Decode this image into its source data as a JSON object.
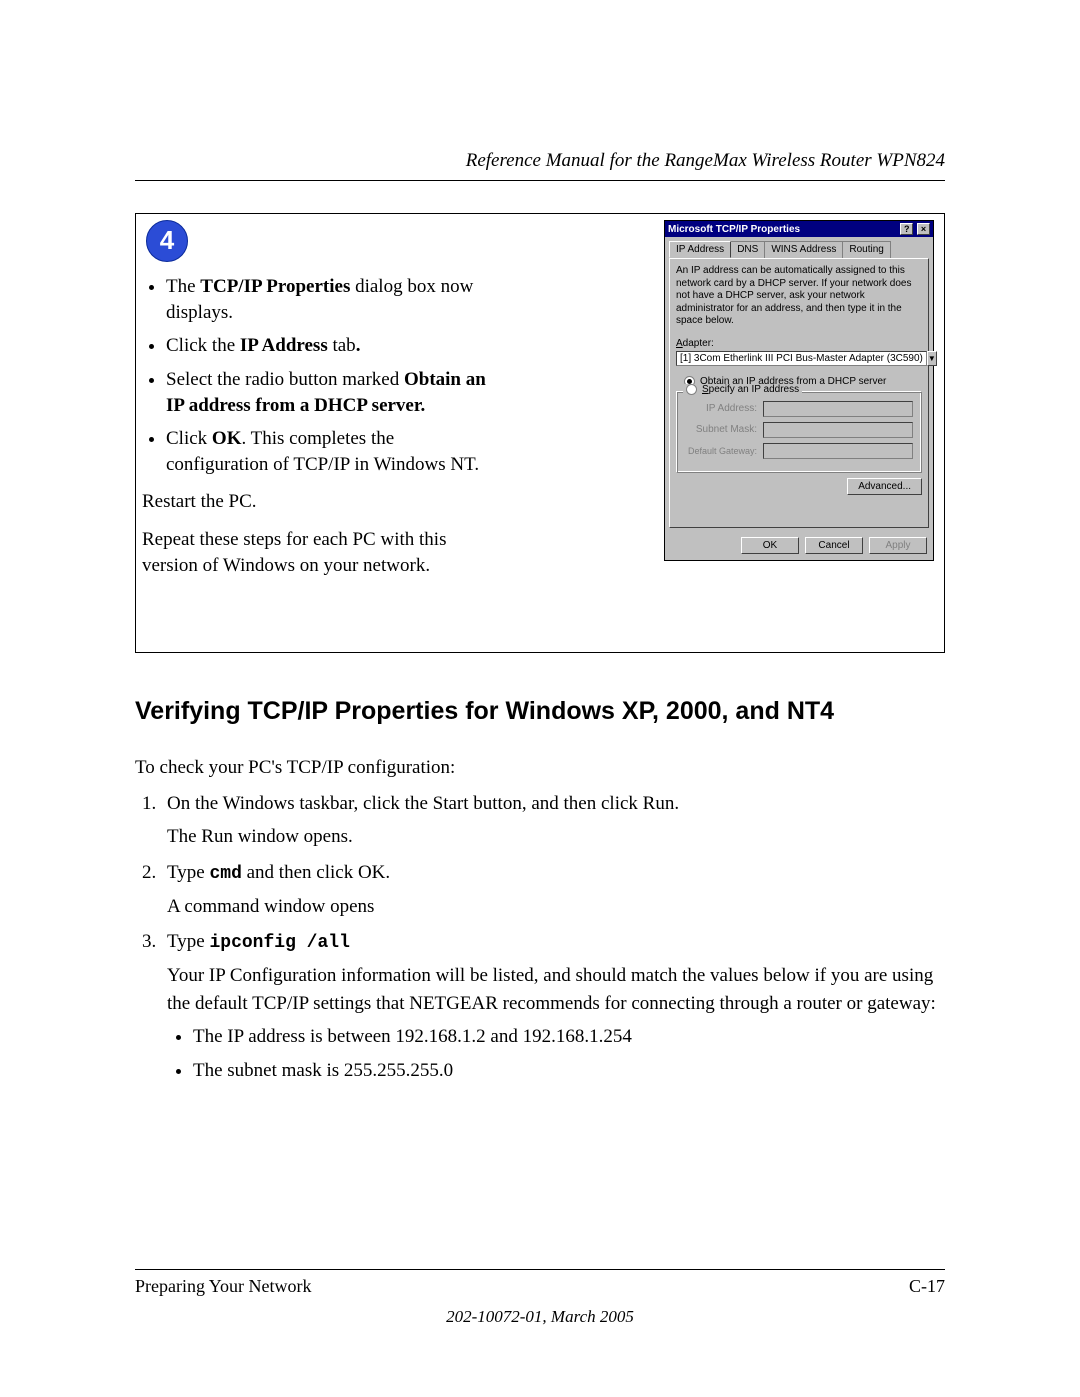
{
  "header": {
    "running_head": "Reference Manual for the RangeMax Wireless Router WPN824"
  },
  "step_box": {
    "number": "4",
    "bullets": {
      "b1_pre": "The ",
      "b1_bold": "TCP/IP Properties",
      "b1_post": " dialog box now displays.",
      "b2_pre": "Click the ",
      "b2_bold": "IP Address",
      "b2_post": " tab",
      "b2_period": ".",
      "b3_pre": "Select the radio button marked ",
      "b3_bold": "Obtain an IP address from a DHCP server.",
      "b4_pre": "Click ",
      "b4_bold": "OK",
      "b4_post": ".  This completes the configuration of TCP/IP in Windows NT."
    },
    "restart": "Restart the PC.",
    "repeat": "Repeat these steps for each PC with this version of Windows on your network."
  },
  "screenshot": {
    "title": "Microsoft TCP/IP Properties",
    "help_glyph": "?",
    "close_glyph": "×",
    "tabs": {
      "ip": "IP Address",
      "dns": "DNS",
      "wins": "WINS Address",
      "routing": "Routing"
    },
    "desc": "An IP address can be automatically assigned to this network card by a DHCP server. If your network does not have a DHCP server, ask your network administrator for an address, and then type it in the space below.",
    "adapter_label": "Adapter:",
    "adapter_value": "[1] 3Com Etherlink III PCI Bus-Master Adapter (3C590)",
    "radio_obtain_u": "O",
    "radio_obtain_rest": "btain an IP address from a DHCP server",
    "radio_specify_u": "S",
    "radio_specify_rest": "pecify an IP address",
    "ip_label": "IP Address:",
    "subnet_label": "Subnet Mask:",
    "gateway_label": "Default Gateway:",
    "btn_advanced": "Advanced...",
    "btn_ok": "OK",
    "btn_cancel": "Cancel",
    "btn_apply": "Apply"
  },
  "section": {
    "heading": "Verifying TCP/IP Properties for Windows XP, 2000, and NT4",
    "intro": "To check your PC's TCP/IP configuration:",
    "steps": {
      "s1a": "On the Windows taskbar, click the Start button, and then click Run.",
      "s1b": "The Run window opens.",
      "s2a_pre": "Type ",
      "s2a_code": "cmd",
      "s2a_post": " and then click OK.",
      "s2b": "A command window opens",
      "s3a_pre": "Type ",
      "s3a_code": "ipconfig /all",
      "s3b": "Your IP Configuration information will be listed, and should match the values below if you are using the default TCP/IP settings that NETGEAR recommends for connecting through a router or gateway:",
      "s3_bullet1": "The IP address is between 192.168.1.2 and 192.168.1.254",
      "s3_bullet2": "The subnet mask is 255.255.255.0"
    }
  },
  "footer": {
    "left": "Preparing Your Network",
    "right": "C-17",
    "bottom": "202-10072-01, March 2005"
  },
  "colors": {
    "badge_bg": "#2b4cd6",
    "titlebar_bg": "#000080",
    "win_bg": "#c0c0c0"
  }
}
